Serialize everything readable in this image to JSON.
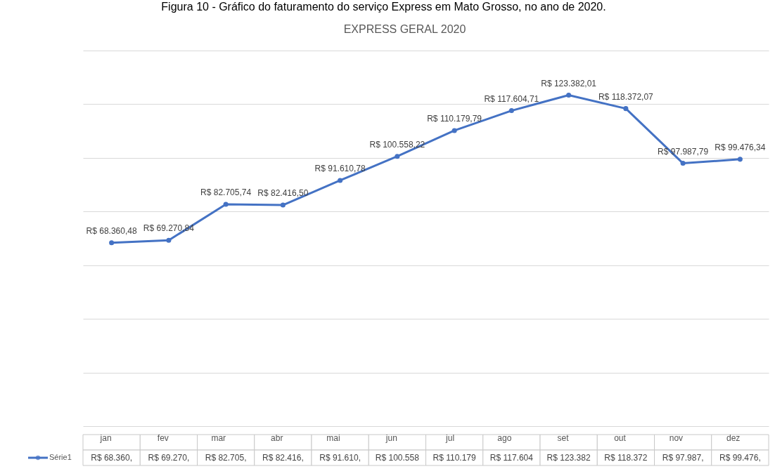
{
  "chart_data": {
    "type": "line",
    "title": "EXPRESS GERAL 2020",
    "categories": [
      "jan",
      "fev",
      "mar",
      "abr",
      "mai",
      "jun",
      "jul",
      "ago",
      "set",
      "out",
      "nov",
      "dez"
    ],
    "series": [
      {
        "name": "Série1",
        "color": "#4472c4",
        "values": [
          68360.48,
          69270.84,
          82705.74,
          82416.5,
          91610.78,
          100558.22,
          110179.79,
          117604.71,
          123382.01,
          118372.07,
          97987.79,
          99476.34
        ],
        "value_labels": [
          "R$ 68.360,48",
          "R$ 69.270,84",
          "R$ 82.705,74",
          "R$ 82.416,50",
          "R$ 91.610,78",
          "R$ 100.558,22",
          "R$ 110.179,79",
          "R$ 117.604,71",
          "R$ 123.382,01",
          "R$ 118.372,07",
          "R$ 97.987,79",
          "R$ 99.476,34"
        ]
      }
    ],
    "ylim": [
      0,
      140000
    ],
    "yticks": [
      {
        "value": 0,
        "label": null
      },
      {
        "value": 20000,
        "label": null
      },
      {
        "value": 40000,
        "label": null
      },
      {
        "value": 60000,
        "label": null
      },
      {
        "value": 80000,
        "label": null
      },
      {
        "value": 100000,
        "label": null
      },
      {
        "value": 120000,
        "label": null
      },
      {
        "value": 140000,
        "label": null
      }
    ],
    "tick_labels": "x",
    "grid": "y",
    "marker": "circle",
    "line_style": "solid",
    "legend": "bottom left",
    "annotations": [
      "Figura 10 - Gráfico do faturamento do serviço Express em Mato Grosso, no ano de 2020.",
      "R$ 68.360,",
      "R$ 69.270,",
      "R$ 82.705,",
      "R$ 82.416,",
      "R$ 91.610,",
      "R$ 100.558",
      "R$ 110.179",
      "R$ 117.604",
      "R$ 123.382",
      "R$ 118.372",
      "R$ 97.987,",
      "R$ 99.476,"
    ]
  }
}
